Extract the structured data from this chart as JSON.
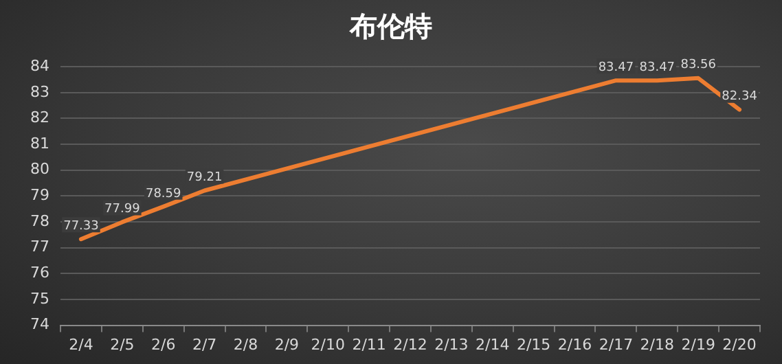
{
  "chart_data": {
    "type": "line",
    "title": "布伦特",
    "categories": [
      "2/4",
      "2/5",
      "2/6",
      "2/7",
      "2/8",
      "2/9",
      "2/10",
      "2/11",
      "2/12",
      "2/13",
      "2/14",
      "2/15",
      "2/16",
      "2/17",
      "2/18",
      "2/19",
      "2/20"
    ],
    "series": [
      {
        "color": "#ed7d31",
        "values": [
          77.33,
          77.99,
          78.59,
          79.21,
          null,
          null,
          null,
          null,
          null,
          null,
          null,
          null,
          null,
          83.47,
          83.47,
          83.56,
          82.34
        ]
      }
    ],
    "ylim": [
      74,
      84
    ],
    "yticks": [
      74,
      75,
      76,
      77,
      78,
      79,
      80,
      81,
      82,
      83,
      84
    ],
    "grid": "y",
    "legend": false,
    "marker": "none",
    "line_style": "solid",
    "data_labels": true
  }
}
